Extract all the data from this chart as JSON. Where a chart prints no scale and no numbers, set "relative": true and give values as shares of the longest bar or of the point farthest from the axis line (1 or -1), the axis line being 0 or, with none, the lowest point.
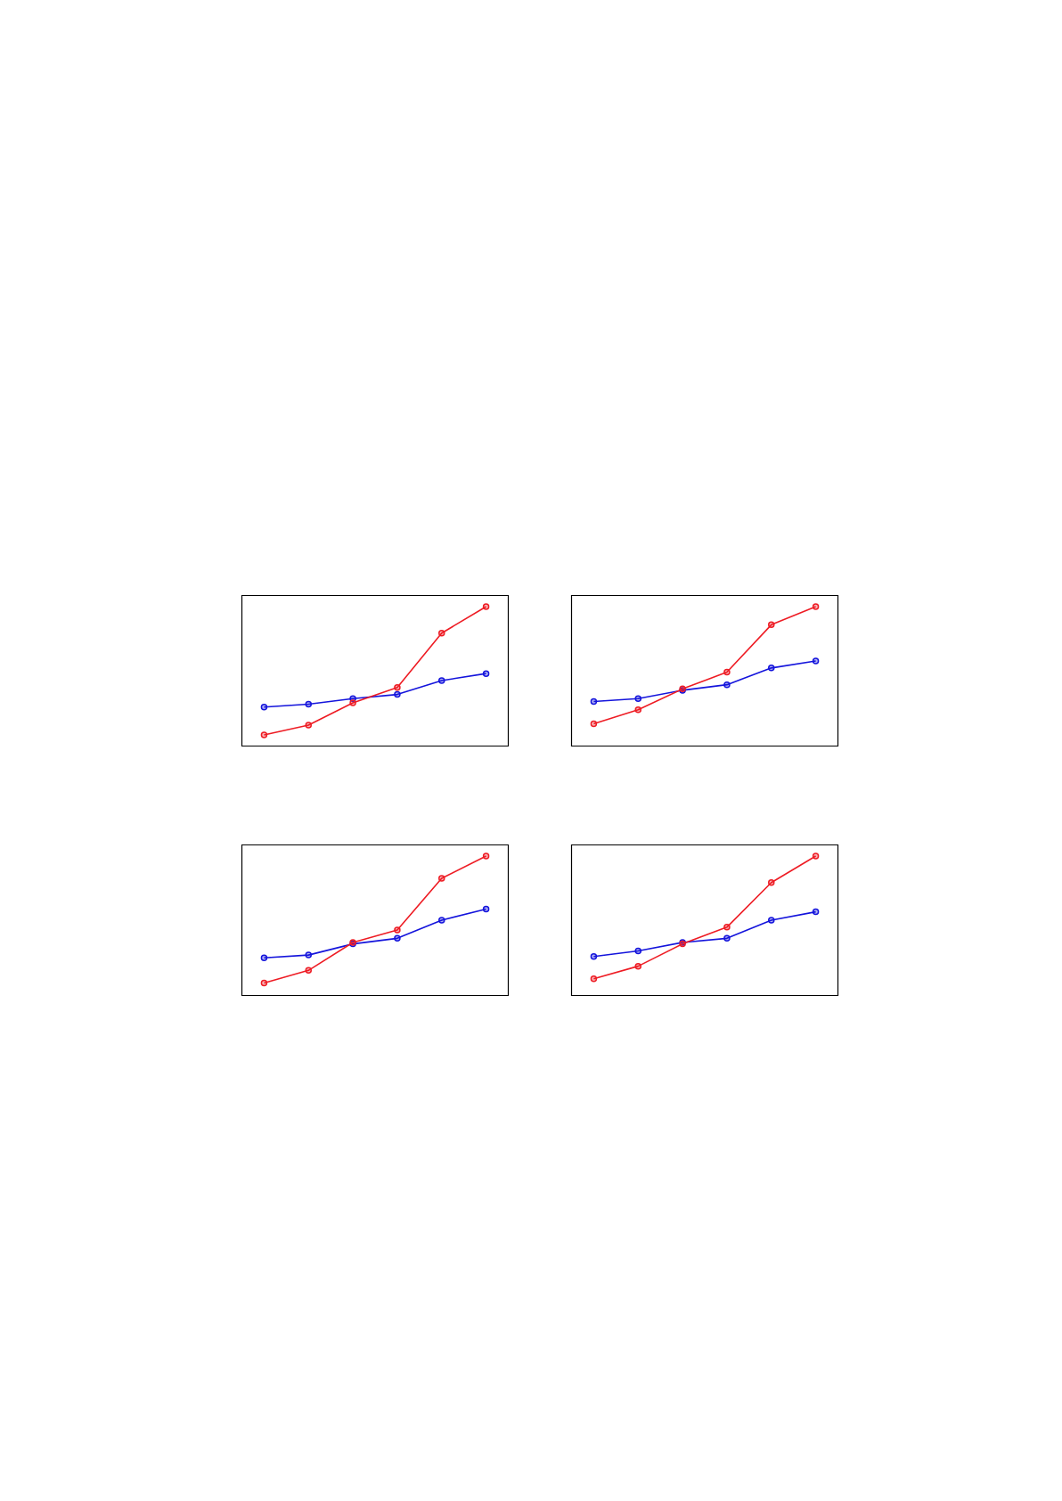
{
  "chart_data": [
    {
      "type": "line",
      "relative": true,
      "marker": "circle",
      "categories": [
        null,
        null,
        null,
        null,
        null,
        null
      ],
      "series": [
        {
          "color": "#ee1c24",
          "values": [
            0.08,
            0.15,
            0.31,
            0.42,
            0.81,
            1
          ]
        },
        {
          "color": "#1414dc",
          "values": [
            0.28,
            0.3,
            0.34,
            0.37,
            0.47,
            0.52
          ]
        }
      ]
    },
    {
      "type": "line",
      "relative": true,
      "marker": "circle",
      "categories": [
        null,
        null,
        null,
        null,
        null,
        null
      ],
      "series": [
        {
          "color": "#ee1c24",
          "values": [
            0.16,
            0.26,
            0.41,
            0.53,
            0.87,
            1
          ]
        },
        {
          "color": "#1414dc",
          "values": [
            0.32,
            0.34,
            0.4,
            0.44,
            0.56,
            0.61
          ]
        }
      ]
    },
    {
      "type": "line",
      "relative": true,
      "marker": "circle",
      "categories": [
        null,
        null,
        null,
        null,
        null,
        null
      ],
      "series": [
        {
          "color": "#ee1c24",
          "values": [
            0.09,
            0.18,
            0.38,
            0.47,
            0.84,
            1
          ]
        },
        {
          "color": "#1414dc",
          "values": [
            0.27,
            0.29,
            0.37,
            0.41,
            0.54,
            0.62
          ]
        }
      ]
    },
    {
      "type": "line",
      "relative": true,
      "marker": "circle",
      "categories": [
        null,
        null,
        null,
        null,
        null,
        null
      ],
      "series": [
        {
          "color": "#ee1c24",
          "values": [
            0.12,
            0.21,
            0.37,
            0.49,
            0.81,
            1
          ]
        },
        {
          "color": "#1414dc",
          "values": [
            0.28,
            0.32,
            0.38,
            0.41,
            0.54,
            0.6
          ]
        }
      ]
    }
  ]
}
